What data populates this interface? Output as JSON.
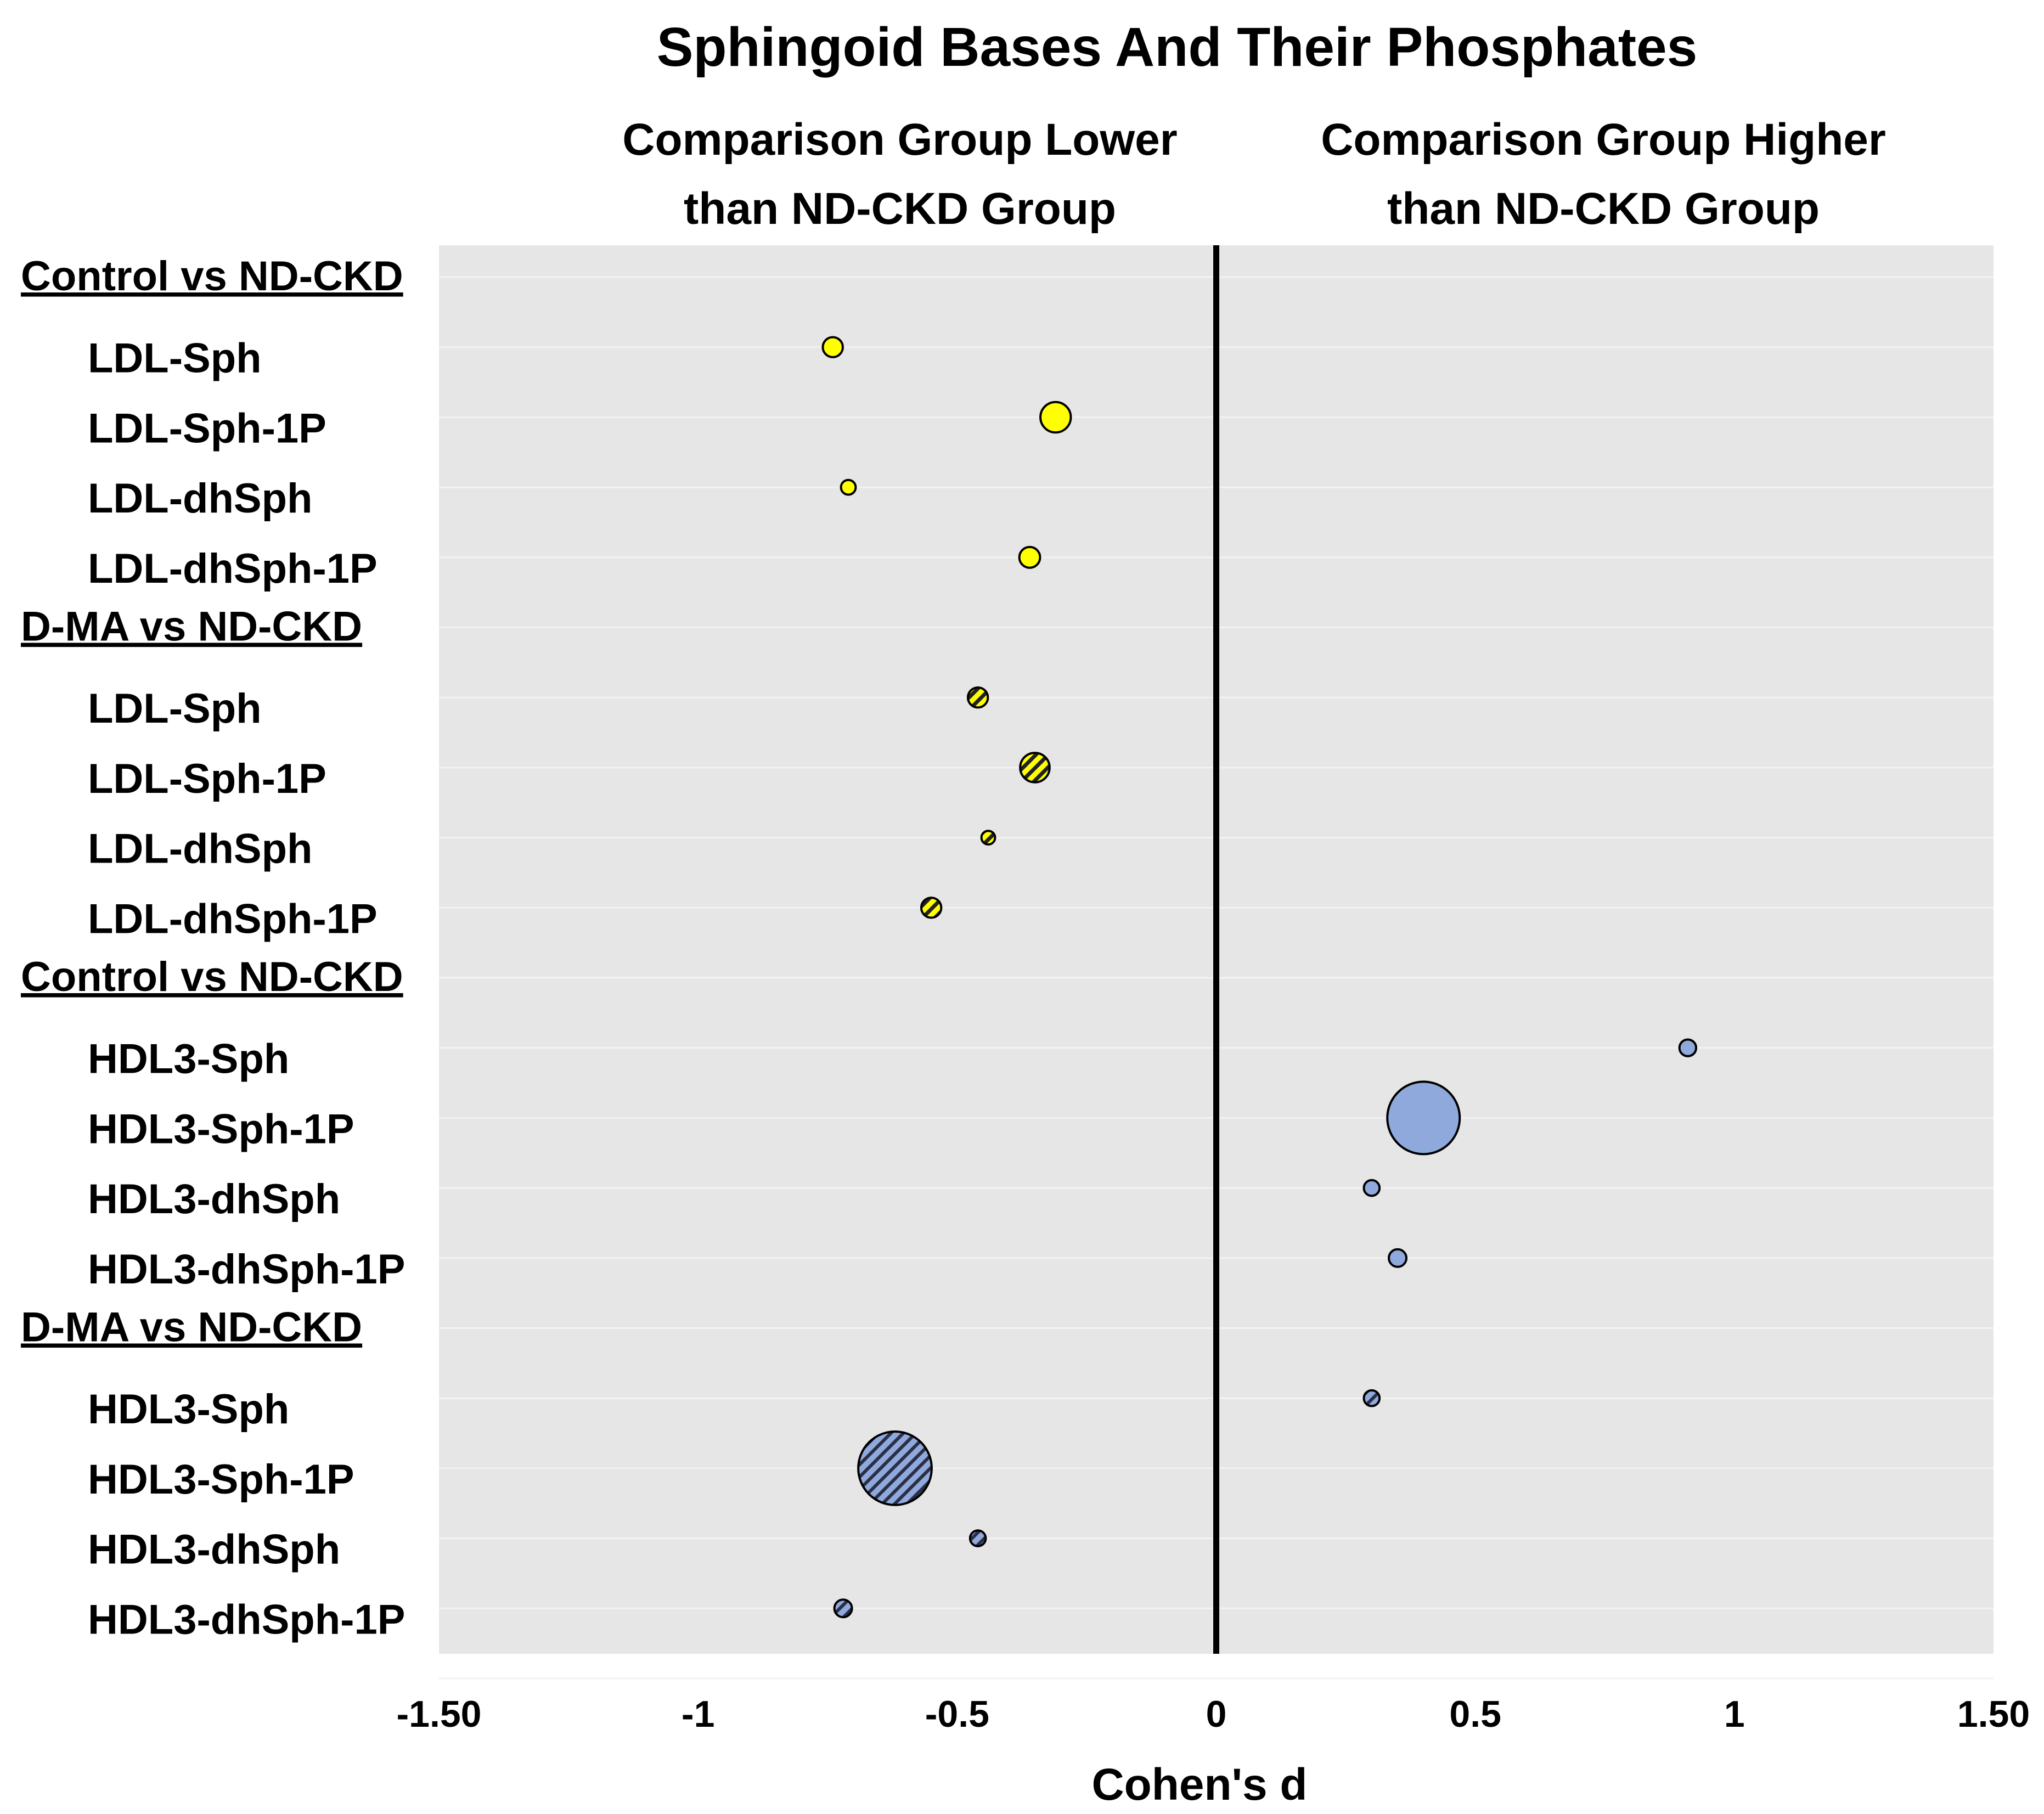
{
  "chart_data": {
    "type": "scatter",
    "subtype": "bubble",
    "title": "Sphingoid Bases And Their Phosphates",
    "header_left": [
      "Comparison Group Lower",
      "than ND-CKD Group"
    ],
    "header_right": [
      "Comparison Group Higher",
      "than ND-CKD Group"
    ],
    "xlabel": "Cohen's d",
    "ylabel": "",
    "xlim": [
      -1.5,
      1.5
    ],
    "xticks": [
      {
        "value": -1.5,
        "label": "-1.50"
      },
      {
        "value": -1,
        "label": "-1"
      },
      {
        "value": -0.5,
        "label": "-0.5"
      },
      {
        "value": 0,
        "label": "0"
      },
      {
        "value": 0.5,
        "label": "0.5"
      },
      {
        "value": 1,
        "label": "1"
      },
      {
        "value": 1.5,
        "label": "1.50"
      }
    ],
    "grid": true,
    "colors": {
      "ldl": "#ffff00",
      "hdl3": "#8fa9dc",
      "background": "#e6e6e6",
      "gridline": "#f2f2f2",
      "outline": "#000000"
    },
    "rows": [
      {
        "label": "Control vs ND-CKD",
        "type": "group"
      },
      {
        "label": "LDL-Sph",
        "type": "item",
        "d": -0.74,
        "size": 1.3,
        "color": "ldl",
        "hatched": false
      },
      {
        "label": "LDL-Sph-1P",
        "type": "item",
        "d": -0.31,
        "size": 3.0,
        "color": "ldl",
        "hatched": false
      },
      {
        "label": "LDL-dhSph",
        "type": "item",
        "d": -0.71,
        "size": 0.7,
        "color": "ldl",
        "hatched": false
      },
      {
        "label": "LDL-dhSph-1P",
        "type": "item",
        "d": -0.36,
        "size": 1.4,
        "color": "ldl",
        "hatched": false
      },
      {
        "label": "D-MA vs ND-CKD",
        "type": "group"
      },
      {
        "label": "LDL-Sph",
        "type": "item",
        "d": -0.46,
        "size": 1.3,
        "color": "ldl",
        "hatched": true
      },
      {
        "label": "LDL-Sph-1P",
        "type": "item",
        "d": -0.35,
        "size": 2.8,
        "color": "ldl",
        "hatched": true
      },
      {
        "label": "LDL-dhSph",
        "type": "item",
        "d": -0.44,
        "size": 0.6,
        "color": "ldl",
        "hatched": true
      },
      {
        "label": "LDL-dhSph-1P",
        "type": "item",
        "d": -0.55,
        "size": 1.3,
        "color": "ldl",
        "hatched": true
      },
      {
        "label": "Control vs ND-CKD",
        "type": "group"
      },
      {
        "label": "HDL3-Sph",
        "type": "item",
        "d": 0.91,
        "size": 0.9,
        "color": "hdl3",
        "hatched": false
      },
      {
        "label": "HDL3-Sph-1P",
        "type": "item",
        "d": 0.4,
        "size": 17.0,
        "color": "hdl3",
        "hatched": false
      },
      {
        "label": "HDL3-dhSph",
        "type": "item",
        "d": 0.3,
        "size": 0.8,
        "color": "hdl3",
        "hatched": false
      },
      {
        "label": "HDL3-dhSph-1P",
        "type": "item",
        "d": 0.35,
        "size": 1.0,
        "color": "hdl3",
        "hatched": false
      },
      {
        "label": "D-MA vs ND-CKD",
        "type": "group"
      },
      {
        "label": "HDL3-Sph",
        "type": "item",
        "d": 0.3,
        "size": 0.8,
        "color": "hdl3",
        "hatched": true
      },
      {
        "label": "HDL3-Sph-1P",
        "type": "item",
        "d": -0.62,
        "size": 17.5,
        "color": "hdl3",
        "hatched": true
      },
      {
        "label": "HDL3-dhSph",
        "type": "item",
        "d": -0.46,
        "size": 0.8,
        "color": "hdl3",
        "hatched": true
      },
      {
        "label": "HDL3-dhSph-1P",
        "type": "item",
        "d": -0.72,
        "size": 1.0,
        "color": "hdl3",
        "hatched": true
      }
    ]
  }
}
